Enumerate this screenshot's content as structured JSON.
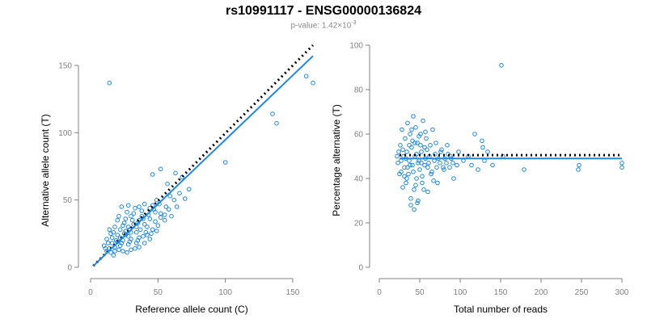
{
  "title": "rs10991117 - ENSG00000136824",
  "subtitle": {
    "prefix": "p-value: 1.42×10",
    "exponent": "-3"
  },
  "colors": {
    "points": "#1e88e5",
    "fit": "#1e88e5",
    "reference": "#000000",
    "axis": "#808080"
  },
  "chart_data": [
    {
      "type": "scatter",
      "title": "",
      "xlabel": "Reference allele count (C)",
      "ylabel": "Alternative allele count (T)",
      "xlim": [
        0,
        165
      ],
      "ylim": [
        0,
        150
      ],
      "xticks": [
        0,
        50,
        100,
        150
      ],
      "yticks": [
        0,
        50,
        100,
        150
      ],
      "grid": false,
      "legend": "none",
      "series": [
        {
          "points": [
            [
              14,
              137
            ],
            [
              160,
              142
            ],
            [
              165,
              137
            ],
            [
              135,
              114
            ],
            [
              138,
              107
            ],
            [
              100,
              78
            ],
            [
              52,
              73
            ],
            [
              46,
              69
            ],
            [
              63,
              70
            ],
            [
              68,
              67
            ],
            [
              57,
              62
            ],
            [
              73,
              58
            ],
            [
              59,
              53
            ],
            [
              70,
              51
            ],
            [
              49,
              50
            ],
            [
              40,
              47
            ],
            [
              36,
              45
            ],
            [
              38,
              42
            ],
            [
              44,
              44
            ],
            [
              48,
              41
            ],
            [
              52,
              40
            ],
            [
              28,
              46
            ],
            [
              23,
              45
            ],
            [
              32,
              40
            ],
            [
              30,
              38
            ],
            [
              26,
              36
            ],
            [
              20,
              35
            ],
            [
              36,
              35
            ],
            [
              44,
              36
            ],
            [
              40,
              32
            ],
            [
              34,
              30
            ],
            [
              28,
              30
            ],
            [
              24,
              31
            ],
            [
              18,
              30
            ],
            [
              14,
              28
            ],
            [
              22,
              28
            ],
            [
              30,
              26
            ],
            [
              26,
              24
            ],
            [
              20,
              24
            ],
            [
              16,
              22
            ],
            [
              12,
              21
            ],
            [
              24,
              20
            ],
            [
              30,
              21
            ],
            [
              36,
              22
            ],
            [
              42,
              24
            ],
            [
              46,
              28
            ],
            [
              50,
              31
            ],
            [
              55,
              35
            ],
            [
              60,
              38
            ],
            [
              64,
              45
            ],
            [
              34,
              18
            ],
            [
              28,
              17
            ],
            [
              22,
              16
            ],
            [
              18,
              15
            ],
            [
              14,
              14
            ],
            [
              12,
              12
            ],
            [
              10,
              16
            ],
            [
              18,
              12
            ],
            [
              24,
              12
            ],
            [
              30,
              13
            ],
            [
              36,
              15
            ],
            [
              40,
              18
            ],
            [
              44,
              21
            ],
            [
              26,
              27
            ],
            [
              32,
              32
            ],
            [
              38,
              38
            ],
            [
              20,
              19
            ],
            [
              16,
              18
            ],
            [
              22,
              22
            ],
            [
              28,
              23
            ],
            [
              34,
              26
            ],
            [
              42,
              30
            ],
            [
              48,
              34
            ],
            [
              52,
              37
            ],
            [
              56,
              45
            ],
            [
              58,
              43
            ],
            [
              46,
              46
            ],
            [
              33,
              44
            ],
            [
              27,
              41
            ],
            [
              21,
              38
            ],
            [
              15,
              25
            ],
            [
              13,
              18
            ],
            [
              11,
              14
            ],
            [
              17,
              26
            ],
            [
              25,
              33
            ],
            [
              31,
              35
            ],
            [
              37,
              28
            ],
            [
              41,
              26
            ],
            [
              45,
              25
            ],
            [
              49,
              27
            ],
            [
              19,
              20
            ],
            [
              23,
              18
            ],
            [
              29,
              19
            ],
            [
              35,
              20
            ],
            [
              39,
              23
            ],
            [
              21,
              13
            ],
            [
              27,
              11
            ],
            [
              33,
              14
            ],
            [
              15,
              11
            ],
            [
              17,
              9
            ],
            [
              25,
              25
            ],
            [
              29,
              28
            ],
            [
              35,
              33
            ],
            [
              39,
              36
            ],
            [
              43,
              39
            ],
            [
              47,
              43
            ],
            [
              51,
              47
            ],
            [
              55,
              39
            ],
            [
              62,
              50
            ],
            [
              66,
              55
            ]
          ]
        }
      ],
      "fit_line": {
        "x": [
          2,
          165
        ],
        "y": [
          1,
          157
        ]
      },
      "reference_line": {
        "x": [
          2,
          165
        ],
        "y": [
          1,
          165
        ]
      }
    },
    {
      "type": "scatter",
      "title": "",
      "xlabel": "Total number of reads",
      "ylabel": "Percentage alternative (T)",
      "xlim": [
        0,
        300
      ],
      "ylim": [
        0,
        100
      ],
      "xticks": [
        0,
        50,
        100,
        150,
        200,
        250,
        300
      ],
      "yticks": [
        0,
        20,
        40,
        60,
        80,
        100
      ],
      "grid": false,
      "legend": "none",
      "series": [
        {
          "points": [
            [
              151,
              91
            ],
            [
              300,
              45
            ],
            [
              300,
              47
            ],
            [
              247,
              46
            ],
            [
              246,
              44
            ],
            [
              179,
              44
            ],
            [
              153,
              50
            ],
            [
              140,
              46
            ],
            [
              134,
              52
            ],
            [
              130,
              48
            ],
            [
              128,
              54
            ],
            [
              127,
              57
            ],
            [
              122,
              44
            ],
            [
              118,
              60
            ],
            [
              114,
              46
            ],
            [
              110,
              50
            ],
            [
              104,
              48
            ],
            [
              98,
              52
            ],
            [
              96,
              46
            ],
            [
              92,
              40
            ],
            [
              88,
              50
            ],
            [
              84,
              55
            ],
            [
              80,
              44
            ],
            [
              76,
              52
            ],
            [
              72,
              38
            ],
            [
              70,
              56
            ],
            [
              68,
              48
            ],
            [
              66,
              62
            ],
            [
              64,
              42
            ],
            [
              62,
              50
            ],
            [
              60,
              34
            ],
            [
              58,
              58
            ],
            [
              56,
              46
            ],
            [
              54,
              66
            ],
            [
              53,
              38
            ],
            [
              52,
              52
            ],
            [
              51,
              60
            ],
            [
              50,
              44
            ],
            [
              49,
              48
            ],
            [
              48,
              30
            ],
            [
              47,
              56
            ],
            [
              46,
              40
            ],
            [
              45,
              63
            ],
            [
              44,
              50
            ],
            [
              43,
              35
            ],
            [
              42,
              68
            ],
            [
              41,
              46
            ],
            [
              40,
              54
            ],
            [
              39,
              28
            ],
            [
              38,
              60
            ],
            [
              37,
              48
            ],
            [
              36,
              42
            ],
            [
              35,
              65
            ],
            [
              34,
              52
            ],
            [
              33,
              38
            ],
            [
              32,
              58
            ],
            [
              31,
              45
            ],
            [
              30,
              50
            ],
            [
              29,
              36
            ],
            [
              28,
              62
            ],
            [
              27,
              48
            ],
            [
              26,
              55
            ],
            [
              25,
              42
            ],
            [
              24,
              52
            ],
            [
              23,
              47
            ],
            [
              22,
              50
            ],
            [
              43,
              26
            ],
            [
              47,
              29
            ],
            [
              39,
              31
            ],
            [
              55,
              35
            ],
            [
              57,
              61
            ],
            [
              59,
              53
            ],
            [
              61,
              47
            ],
            [
              63,
              55
            ],
            [
              65,
              43
            ],
            [
              67,
              39
            ],
            [
              69,
              51
            ],
            [
              71,
              45
            ],
            [
              73,
              49
            ],
            [
              75,
              47
            ],
            [
              77,
              53
            ],
            [
              79,
              45
            ],
            [
              81,
              49
            ],
            [
              83,
              47
            ],
            [
              85,
              51
            ],
            [
              87,
              45
            ],
            [
              89,
              49
            ],
            [
              91,
              47
            ],
            [
              35,
              45
            ],
            [
              37,
              55
            ],
            [
              41,
              57
            ],
            [
              45,
              37
            ],
            [
              49,
              59
            ],
            [
              53,
              41
            ],
            [
              33,
              49
            ],
            [
              31,
              41
            ],
            [
              29,
              53
            ],
            [
              27,
              43
            ],
            [
              57,
              49
            ],
            [
              51,
              55
            ],
            [
              46,
              51
            ],
            [
              42,
              43
            ],
            [
              38,
              46
            ],
            [
              34,
              40
            ],
            [
              40,
              62
            ],
            [
              44,
              56
            ],
            [
              48,
              47
            ],
            [
              52,
              47
            ],
            [
              56,
              54
            ],
            [
              60,
              45
            ]
          ]
        }
      ],
      "fit_line": {
        "x": [
          25,
          300
        ],
        "y": [
          49,
          49
        ]
      },
      "reference_line": {
        "x": [
          25,
          300
        ],
        "y": [
          50.5,
          50.5
        ]
      }
    }
  ]
}
